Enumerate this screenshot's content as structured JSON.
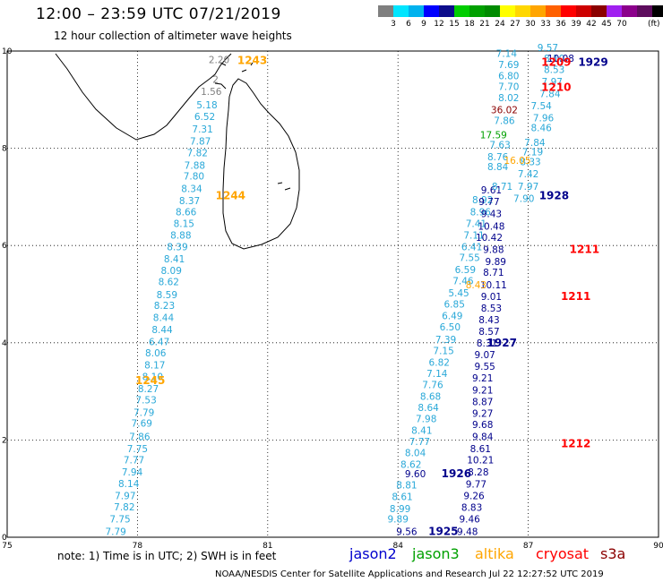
{
  "header": {
    "title": "12:00 – 23:59 UTC 07/21/2019",
    "subtitle": "12 hour collection of altimeter wave heights"
  },
  "colorbar": {
    "colors": [
      "#7f7f7f",
      "#00e5ff",
      "#00b2ee",
      "#0000ff",
      "#0c0c8b",
      "#00cd00",
      "#00a000",
      "#008b00",
      "#ffff00",
      "#ffd700",
      "#ffa500",
      "#ff6000",
      "#ff0000",
      "#cd0000",
      "#8b0000",
      "#a020f0",
      "#8b008b",
      "#5d0c5d",
      "#000000"
    ],
    "labels": [
      "3",
      "6",
      "9",
      "12",
      "15",
      "18",
      "21",
      "24",
      "27",
      "30",
      "33",
      "36",
      "39",
      "42",
      "45",
      "70"
    ],
    "unit": "(ft)"
  },
  "map": {
    "lon_range": [
      75,
      90
    ],
    "lat_range": [
      0,
      10
    ],
    "x_ticks": [
      "75",
      "78",
      "81",
      "84",
      "87",
      "90"
    ],
    "y_ticks": [
      "0",
      "2",
      "4",
      "6",
      "8",
      "10"
    ],
    "grid": "dotted",
    "landmass": "Sri Lanka",
    "tracks": [
      {
        "satellite": "jason3",
        "color": "#29a8d8",
        "points": [
          {
            "lon": 77.5,
            "lat": 0.05,
            "v": "7.79"
          },
          {
            "lon": 77.6,
            "lat": 0.3,
            "v": "7.75"
          },
          {
            "lon": 77.7,
            "lat": 0.55,
            "v": "7.82"
          },
          {
            "lon": 77.72,
            "lat": 0.78,
            "v": "7.97"
          },
          {
            "lon": 77.8,
            "lat": 1.03,
            "v": "8.14"
          },
          {
            "lon": 77.88,
            "lat": 1.27,
            "v": "7.94"
          },
          {
            "lon": 77.92,
            "lat": 1.52,
            "v": "7.77"
          },
          {
            "lon": 78.0,
            "lat": 1.75,
            "v": "7.75"
          },
          {
            "lon": 78.05,
            "lat": 2.0,
            "v": "7.86"
          },
          {
            "lon": 78.1,
            "lat": 2.27,
            "v": "7.69"
          },
          {
            "lon": 78.15,
            "lat": 2.5,
            "v": "7.79"
          },
          {
            "lon": 78.2,
            "lat": 2.75,
            "v": "7.53"
          },
          {
            "lon": 78.25,
            "lat": 2.98,
            "v": "8.27"
          },
          {
            "lon": 78.35,
            "lat": 3.23,
            "v": "8.10"
          },
          {
            "lon": 78.4,
            "lat": 3.47,
            "v": "8.17"
          },
          {
            "lon": 78.42,
            "lat": 3.72,
            "v": "8.06"
          },
          {
            "lon": 78.5,
            "lat": 3.95,
            "v": "6.47"
          },
          {
            "lon": 78.57,
            "lat": 4.2,
            "v": "8.44"
          },
          {
            "lon": 78.6,
            "lat": 4.45,
            "v": "8.44"
          },
          {
            "lon": 78.62,
            "lat": 4.7,
            "v": "8.23"
          },
          {
            "lon": 78.68,
            "lat": 4.92,
            "v": "8.59"
          },
          {
            "lon": 78.72,
            "lat": 5.18,
            "v": "8.62"
          },
          {
            "lon": 78.78,
            "lat": 5.41,
            "v": "8.09"
          },
          {
            "lon": 78.85,
            "lat": 5.65,
            "v": "8.41"
          },
          {
            "lon": 78.92,
            "lat": 5.9,
            "v": "8.39"
          },
          {
            "lon": 79.0,
            "lat": 6.14,
            "v": "8.88"
          },
          {
            "lon": 79.07,
            "lat": 6.38,
            "v": "8.15"
          },
          {
            "lon": 79.12,
            "lat": 6.62,
            "v": "8.66"
          },
          {
            "lon": 79.2,
            "lat": 6.85,
            "v": "8.37"
          },
          {
            "lon": 79.25,
            "lat": 7.1,
            "v": "8.34"
          },
          {
            "lon": 79.3,
            "lat": 7.36,
            "v": "7.80"
          },
          {
            "lon": 79.32,
            "lat": 7.58,
            "v": "7.88"
          },
          {
            "lon": 79.38,
            "lat": 7.84,
            "v": "7.82"
          },
          {
            "lon": 79.45,
            "lat": 8.08,
            "v": "7.87"
          },
          {
            "lon": 79.5,
            "lat": 8.32,
            "v": "7.31"
          },
          {
            "lon": 79.55,
            "lat": 8.58,
            "v": "6.52"
          },
          {
            "lon": 79.6,
            "lat": 8.82,
            "v": "5.18"
          }
        ]
      },
      {
        "satellite": "jason3",
        "color": "#808080",
        "points": [
          {
            "lon": 79.7,
            "lat": 9.1,
            "v": "1.56"
          },
          {
            "lon": 79.8,
            "lat": 9.35,
            "v": "2"
          },
          {
            "lon": 79.88,
            "lat": 9.75,
            "v": "2.20"
          }
        ]
      },
      {
        "satellite": "jason3",
        "color": "#29a8d8",
        "points": [
          {
            "lon": 84.0,
            "lat": 0.3,
            "v": "9.89"
          },
          {
            "lon": 84.05,
            "lat": 0.52,
            "v": "8.99"
          },
          {
            "lon": 84.1,
            "lat": 0.76,
            "v": "8.61"
          },
          {
            "lon": 84.2,
            "lat": 1.0,
            "v": "8.81"
          },
          {
            "lon": 84.3,
            "lat": 1.43,
            "v": "8.62"
          },
          {
            "lon": 84.4,
            "lat": 1.67,
            "v": "8.04"
          },
          {
            "lon": 84.5,
            "lat": 1.9,
            "v": "7.77"
          },
          {
            "lon": 84.55,
            "lat": 2.13,
            "v": "8.41"
          },
          {
            "lon": 84.65,
            "lat": 2.37,
            "v": "7.98"
          },
          {
            "lon": 84.7,
            "lat": 2.6,
            "v": "8.64"
          },
          {
            "lon": 84.75,
            "lat": 2.83,
            "v": "8.68"
          },
          {
            "lon": 84.8,
            "lat": 3.07,
            "v": "7.76"
          },
          {
            "lon": 84.9,
            "lat": 3.3,
            "v": "7.14"
          },
          {
            "lon": 84.95,
            "lat": 3.53,
            "v": "6.82"
          },
          {
            "lon": 85.05,
            "lat": 3.77,
            "v": "7.15"
          },
          {
            "lon": 85.1,
            "lat": 4.0,
            "v": "7.39"
          },
          {
            "lon": 85.2,
            "lat": 4.25,
            "v": "6.50"
          },
          {
            "lon": 85.25,
            "lat": 4.48,
            "v": "6.49"
          },
          {
            "lon": 85.3,
            "lat": 4.72,
            "v": "6.85"
          },
          {
            "lon": 85.4,
            "lat": 4.95,
            "v": "5.45"
          },
          {
            "lon": 85.5,
            "lat": 5.2,
            "v": "7.46"
          },
          {
            "lon": 85.55,
            "lat": 5.43,
            "v": "6.59"
          },
          {
            "lon": 85.65,
            "lat": 5.68,
            "v": "7.55"
          },
          {
            "lon": 85.7,
            "lat": 5.9,
            "v": "6.41"
          },
          {
            "lon": 85.75,
            "lat": 6.14,
            "v": "7.11"
          },
          {
            "lon": 85.8,
            "lat": 6.38,
            "v": "7.41"
          },
          {
            "lon": 85.9,
            "lat": 6.62,
            "v": "8.96"
          },
          {
            "lon": 85.95,
            "lat": 6.87,
            "v": "8.92"
          }
        ]
      },
      {
        "satellite": "jason2",
        "color": "#00008b",
        "points": [
          {
            "lon": 84.2,
            "lat": 0.05,
            "v": "9.56"
          },
          {
            "lon": 84.4,
            "lat": 1.23,
            "v": "9.60"
          },
          {
            "lon": 85.6,
            "lat": 0.05,
            "v": "9.48"
          },
          {
            "lon": 85.65,
            "lat": 0.3,
            "v": "9.46"
          },
          {
            "lon": 85.7,
            "lat": 0.54,
            "v": "8.83"
          },
          {
            "lon": 85.75,
            "lat": 0.78,
            "v": "9.26"
          },
          {
            "lon": 85.8,
            "lat": 1.02,
            "v": "9.77"
          },
          {
            "lon": 85.85,
            "lat": 1.27,
            "v": "8.28"
          },
          {
            "lon": 85.9,
            "lat": 1.52,
            "v": "10.21"
          },
          {
            "lon": 85.9,
            "lat": 1.75,
            "v": "8.61"
          },
          {
            "lon": 85.95,
            "lat": 2.0,
            "v": "9.84"
          },
          {
            "lon": 85.95,
            "lat": 2.25,
            "v": "9.68"
          },
          {
            "lon": 85.95,
            "lat": 2.48,
            "v": "9.27"
          },
          {
            "lon": 85.95,
            "lat": 2.72,
            "v": "8.87"
          },
          {
            "lon": 85.95,
            "lat": 2.96,
            "v": "9.21"
          },
          {
            "lon": 85.95,
            "lat": 3.2,
            "v": "9.21"
          },
          {
            "lon": 86.0,
            "lat": 3.44,
            "v": "9.55"
          },
          {
            "lon": 86.0,
            "lat": 3.68,
            "v": "9.07"
          },
          {
            "lon": 86.05,
            "lat": 3.92,
            "v": "8.31"
          },
          {
            "lon": 86.1,
            "lat": 4.16,
            "v": "8.57"
          },
          {
            "lon": 86.1,
            "lat": 4.4,
            "v": "8.43"
          },
          {
            "lon": 86.15,
            "lat": 4.64,
            "v": "8.53"
          },
          {
            "lon": 86.15,
            "lat": 4.88,
            "v": "9.01"
          },
          {
            "lon": 86.2,
            "lat": 5.12,
            "v": "10.11"
          },
          {
            "lon": 86.2,
            "lat": 5.38,
            "v": "8.71"
          },
          {
            "lon": 86.25,
            "lat": 5.6,
            "v": "9.89"
          },
          {
            "lon": 86.2,
            "lat": 5.85,
            "v": "9.88"
          },
          {
            "lon": 86.1,
            "lat": 6.1,
            "v": "10.42"
          },
          {
            "lon": 86.15,
            "lat": 6.33,
            "v": "10.48"
          },
          {
            "lon": 86.15,
            "lat": 6.58,
            "v": "9.43"
          },
          {
            "lon": 86.1,
            "lat": 6.83,
            "v": "9.77"
          },
          {
            "lon": 86.15,
            "lat": 7.07,
            "v": "9.61"
          }
        ]
      },
      {
        "satellite": "jason3",
        "color": "#29a8d8",
        "points": [
          {
            "lon": 86.4,
            "lat": 7.15,
            "v": "8.71"
          },
          {
            "lon": 86.3,
            "lat": 7.55,
            "v": "8.84"
          },
          {
            "lon": 86.3,
            "lat": 7.75,
            "v": "8.76"
          },
          {
            "lon": 86.35,
            "lat": 8.0,
            "v": "7.63"
          },
          {
            "lon": 86.45,
            "lat": 8.5,
            "v": "7.86"
          },
          {
            "lon": 86.55,
            "lat": 8.97,
            "v": "8.02"
          },
          {
            "lon": 86.55,
            "lat": 9.2,
            "v": "7.70"
          },
          {
            "lon": 86.55,
            "lat": 9.42,
            "v": "6.80"
          },
          {
            "lon": 86.55,
            "lat": 9.65,
            "v": "7.69"
          },
          {
            "lon": 86.5,
            "lat": 9.88,
            "v": "7.14"
          },
          {
            "lon": 86.9,
            "lat": 6.9,
            "v": "7.90"
          },
          {
            "lon": 87.0,
            "lat": 7.15,
            "v": "7.97"
          },
          {
            "lon": 87.0,
            "lat": 7.4,
            "v": "7.42"
          },
          {
            "lon": 87.05,
            "lat": 7.65,
            "v": "8.33"
          },
          {
            "lon": 87.1,
            "lat": 7.85,
            "v": "7.19"
          },
          {
            "lon": 87.15,
            "lat": 8.05,
            "v": "7.84"
          },
          {
            "lon": 87.3,
            "lat": 8.35,
            "v": "8.46"
          },
          {
            "lon": 87.35,
            "lat": 8.55,
            "v": "7.96"
          },
          {
            "lon": 87.3,
            "lat": 8.8,
            "v": "7.54"
          },
          {
            "lon": 87.5,
            "lat": 9.05,
            "v": "7.84"
          },
          {
            "lon": 87.55,
            "lat": 9.3,
            "v": "7.97"
          },
          {
            "lon": 87.6,
            "lat": 9.55,
            "v": "8.53"
          },
          {
            "lon": 87.6,
            "lat": 9.78,
            "v": "8.10"
          },
          {
            "lon": 87.45,
            "lat": 10.0,
            "v": "9.57"
          }
        ]
      },
      {
        "satellite": "jason2",
        "color": "#00008b",
        "points": [
          {
            "lon": 87.75,
            "lat": 9.78,
            "v": "10.08"
          }
        ]
      },
      {
        "satellite": "altika",
        "color": "#ffa500",
        "points": [
          {
            "lon": 85.8,
            "lat": 5.12,
            "v": "8.43"
          },
          {
            "lon": 86.75,
            "lat": 7.68,
            "v": "16.05"
          }
        ]
      },
      {
        "satellite": "jason3-green",
        "color": "#00a000",
        "points": [
          {
            "lon": 86.2,
            "lat": 8.2,
            "v": "17.59"
          }
        ]
      },
      {
        "satellite": "cryosat",
        "color": "#8b0000",
        "points": [
          {
            "lon": 86.45,
            "lat": 8.72,
            "v": "36.02"
          }
        ]
      }
    ],
    "time_labels": [
      {
        "lon": 80.3,
        "lat": 9.73,
        "t": "1243",
        "color": "#ffa500"
      },
      {
        "lon": 79.8,
        "lat": 6.95,
        "t": "1244",
        "color": "#ffa500"
      },
      {
        "lon": 77.95,
        "lat": 3.15,
        "t": "1245",
        "color": "#ffa500"
      },
      {
        "lon": 87.3,
        "lat": 9.7,
        "t": "1209",
        "color": "#ff0000"
      },
      {
        "lon": 87.3,
        "lat": 9.18,
        "t": "1210",
        "color": "#ff0000"
      },
      {
        "lon": 87.95,
        "lat": 5.85,
        "t": "1211",
        "color": "#ff0000"
      },
      {
        "lon": 87.75,
        "lat": 4.88,
        "t": "1211",
        "color": "#ff0000"
      },
      {
        "lon": 87.75,
        "lat": 1.85,
        "t": "1212",
        "color": "#ff0000"
      },
      {
        "lon": 88.15,
        "lat": 9.7,
        "t": "1929",
        "color": "#00008b"
      },
      {
        "lon": 87.25,
        "lat": 6.95,
        "t": "1928",
        "color": "#00008b"
      },
      {
        "lon": 86.05,
        "lat": 3.92,
        "t": "1927",
        "color": "#00008b"
      },
      {
        "lon": 85.0,
        "lat": 1.23,
        "t": "1926",
        "color": "#00008b"
      },
      {
        "lon": 84.7,
        "lat": 0.05,
        "t": "1925",
        "color": "#00008b"
      }
    ]
  },
  "footer": {
    "note": "note:  1) Time is in UTC;  2) SWH is in feet",
    "legend": [
      {
        "label": "jason2",
        "color": "#0000cd"
      },
      {
        "label": "jason3",
        "color": "#00a000"
      },
      {
        "label": "altika",
        "color": "#ffa500"
      },
      {
        "label": "cryosat",
        "color": "#ff0000"
      },
      {
        "label": "s3a",
        "color": "#8b0000"
      }
    ],
    "credit": "NOAA/NESDIS Center for Satellite Applications and Research     Jul 22 12:27:52 UTC 2019"
  }
}
